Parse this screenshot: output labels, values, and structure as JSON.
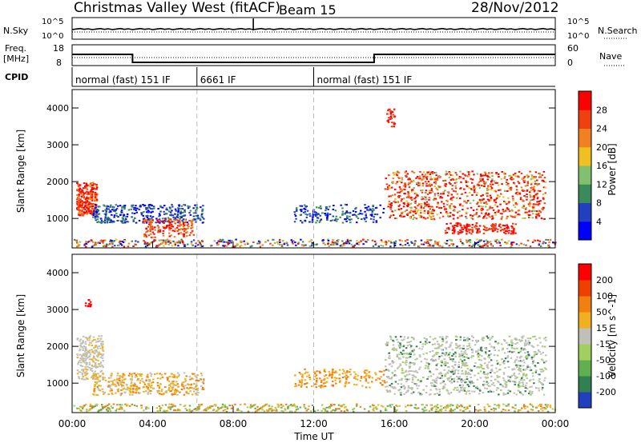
{
  "header": {
    "title": "Christmas Valley West (fitACF)",
    "beam": "Beam 15",
    "date": "28/Nov/2012"
  },
  "strip_labels": {
    "nsky": "N.Sky",
    "nsearch": "N.Search",
    "freq_line1": "Freq.",
    "freq_line2": "[MHz]",
    "nave": "Nave",
    "cpid": "CPID",
    "tick_1e5_left": "10^5",
    "tick_1e0_left": "10^0",
    "tick_1e5_right": "10^5",
    "tick_1e0_right": "10^0",
    "freq_tick_hi": "18",
    "freq_tick_lo": "8",
    "nave_tick_hi": "60",
    "nave_tick_lo": "0"
  },
  "cpid_segments": [
    {
      "label": "normal (fast) 151 IF",
      "start_hour": 0,
      "end_hour": 6.2
    },
    {
      "label": "6661 IF",
      "start_hour": 6.2,
      "end_hour": 12.0
    },
    {
      "label": "normal (fast) 151 IF",
      "start_hour": 12.0,
      "end_hour": 24.0
    }
  ],
  "frequency_steps": [
    {
      "start_hour": 0,
      "end_hour": 3.0,
      "value_mhz": 15
    },
    {
      "start_hour": 3.0,
      "end_hour": 15.0,
      "value_mhz": 10
    },
    {
      "start_hour": 15.0,
      "end_hour": 24.0,
      "value_mhz": 15
    }
  ],
  "colors": {
    "power_scale": [
      "#0000ff",
      "#2040c0",
      "#3a8a5a",
      "#80c070",
      "#f0c020",
      "#f08020",
      "#f04010",
      "#ff0000"
    ],
    "velocity_scale": [
      "#2040c0",
      "#308050",
      "#60b050",
      "#a0d060",
      "#c0c0b8",
      "#f0b020",
      "#f08010",
      "#f04000",
      "#ff0000"
    ]
  },
  "chart_data": [
    {
      "type": "heatmap",
      "name": "power",
      "ylabel": "Slant Range [km]",
      "xlabel": "",
      "x_range_hours": [
        0,
        24
      ],
      "y_range_km": [
        200,
        4500
      ],
      "y_ticks": [
        "1000",
        "2000",
        "3000",
        "4000"
      ],
      "colorbar_label": "Power [dB]",
      "colorbar_ticks": [
        "4",
        "8",
        "12",
        "16",
        "20",
        "24",
        "28"
      ],
      "colorbar_range": [
        0,
        32
      ]
    },
    {
      "type": "heatmap",
      "name": "velocity",
      "ylabel": "Slant Range [km]",
      "xlabel": "Time UT",
      "x_range_hours": [
        0,
        24
      ],
      "y_range_km": [
        200,
        4500
      ],
      "x_ticks": [
        "00:00",
        "04:00",
        "08:00",
        "12:00",
        "16:00",
        "20:00",
        "00:00"
      ],
      "y_ticks": [
        "1000",
        "2000",
        "3000",
        "4000"
      ],
      "colorbar_label": "Velocity [m s^-1]",
      "colorbar_ticks": [
        "200",
        "100",
        "50",
        "15",
        "-15",
        "-50",
        "-100",
        "-200"
      ]
    }
  ]
}
